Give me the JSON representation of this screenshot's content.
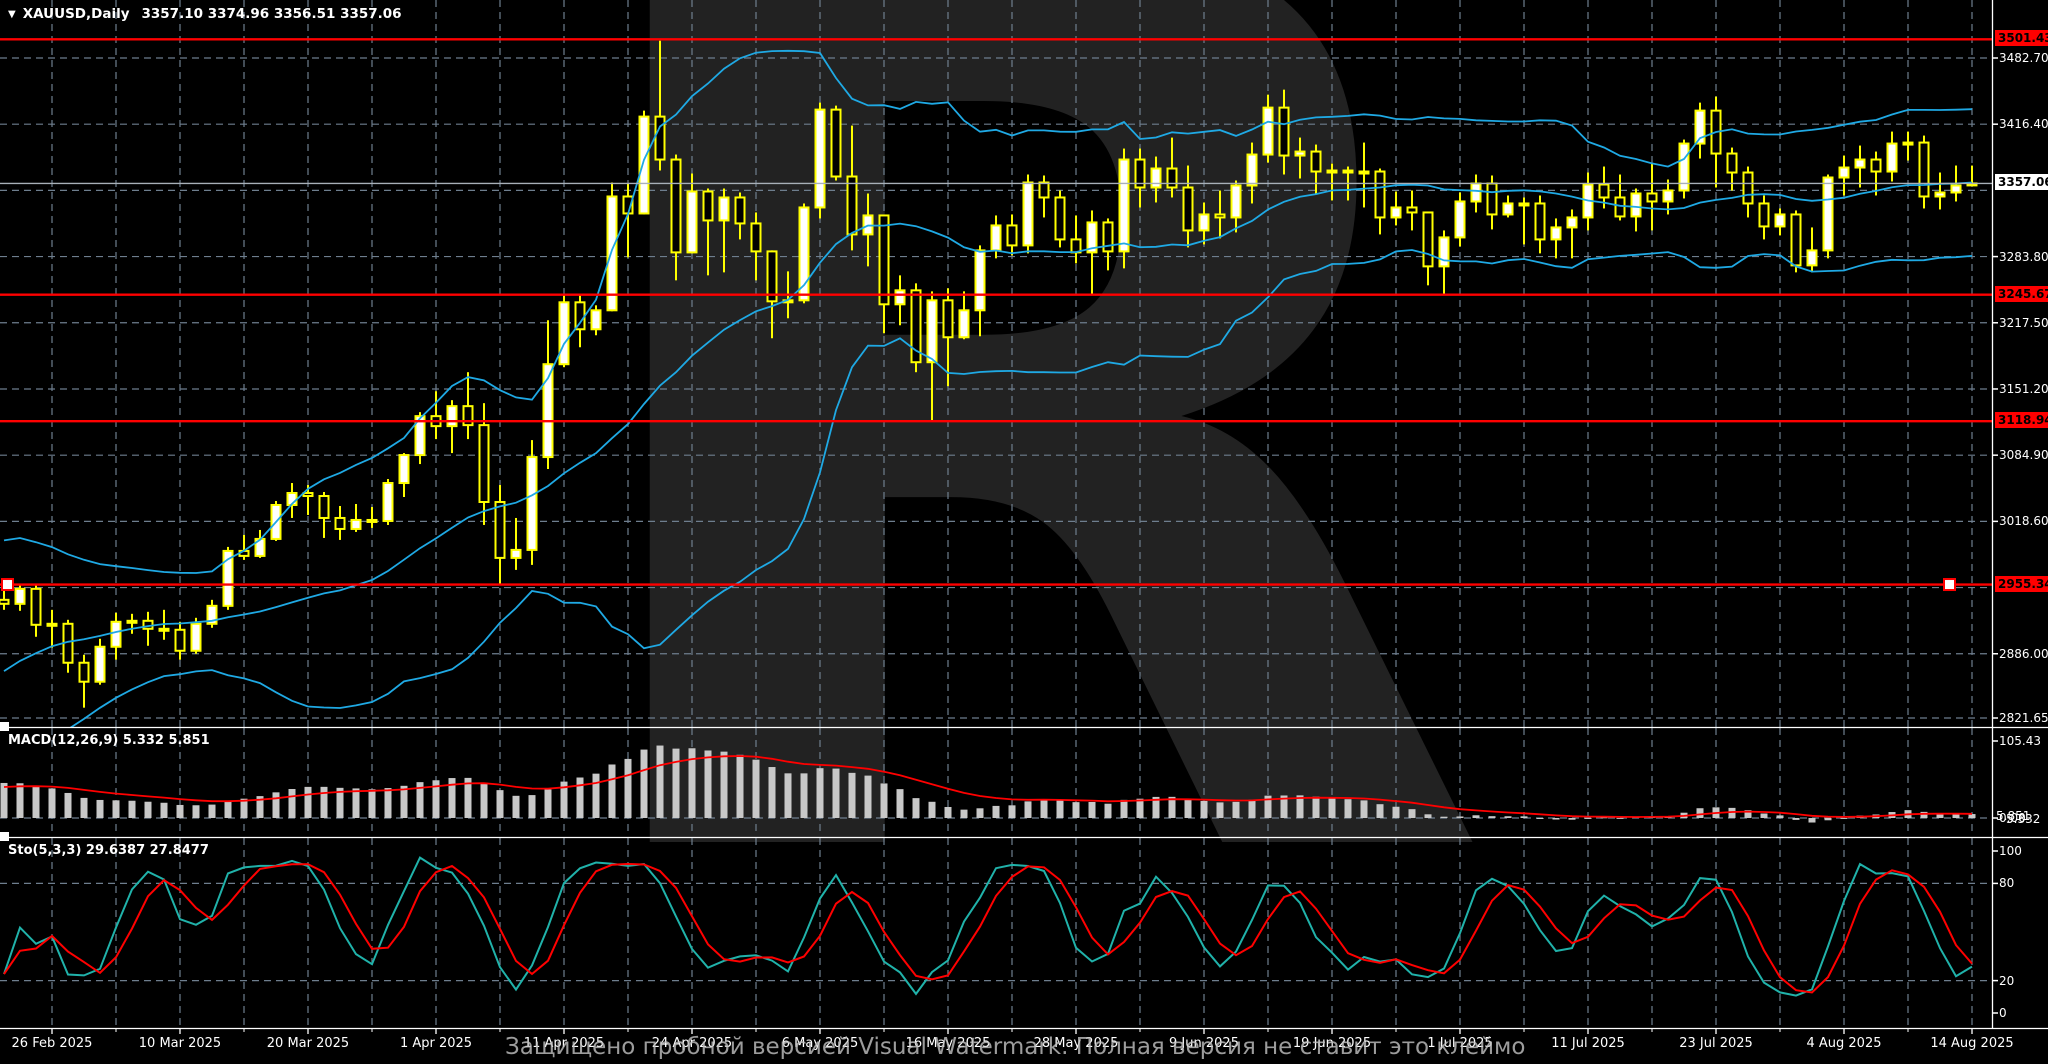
{
  "window": {
    "symbol_label": "XAUUSD,Daily",
    "ohlc_values": "3357.10 3374.96 3356.51 3357.06",
    "dropdown_icon": "▼"
  },
  "watermark": {
    "letter": "R",
    "text": "Защищено пробной версией Visual Watermark. Полная версия не ставит это клеймо"
  },
  "colors": {
    "background": "#000000",
    "candle_outline": "#FFFF00",
    "bull_fill": "#FFFFFF",
    "bear_fill": "#000000",
    "bollinger": "#1FA9E4",
    "grid": "#6E7E8E",
    "level_line": "#FF0000",
    "current_line": "#A8B0B8",
    "separator": "#FFFFFF",
    "macd_histogram": "#C8C8C8",
    "signal_line": "#FF0000",
    "sto_main": "#20B2AA",
    "sto_signal": "#FF0000",
    "axis_text": "#FFFFFF"
  },
  "x_axis": {
    "labels": [
      "26 Feb 2025",
      "10 Mar 2025",
      "20 Mar 2025",
      "1 Apr 2025",
      "11 Apr 2025",
      "24 Apr 2025",
      "6 May 2025",
      "16 May 2025",
      "28 May 2025",
      "9 Jun 2025",
      "19 Jun 2025",
      "1 Jul 2025",
      "11 Jul 2025",
      "23 Jul 2025",
      "4 Aug 2025",
      "14 Aug 2025"
    ],
    "first_label_candle_index": 3,
    "candles_per_label": 8
  },
  "chart_data": [
    {
      "type": "candlestick",
      "symbol": "XAUUSD",
      "timeframe": "Daily",
      "price_ticks": [
        {
          "label": "3482.70",
          "price": 3482.7
        },
        {
          "label": "3416.40",
          "price": 3416.4
        },
        {
          "label": "3283.80",
          "price": 3283.8
        },
        {
          "label": "3217.50",
          "price": 3217.5
        },
        {
          "label": "3151.20",
          "price": 3151.2
        },
        {
          "label": "3084.90",
          "price": 3084.9
        },
        {
          "label": "3018.60",
          "price": 3018.6
        },
        {
          "label": "2886.00",
          "price": 2886.0
        },
        {
          "label": "2821.65",
          "price": 2821.65
        }
      ],
      "grid_prices": [
        3482.7,
        3416.4,
        3350.1,
        3283.8,
        3217.5,
        3151.2,
        3084.9,
        3018.6,
        2952.3,
        2886.0,
        2821.65
      ],
      "levels": [
        {
          "label": "3501.43",
          "price": 3501.43,
          "selected": false
        },
        {
          "label": "3245.67",
          "price": 3245.67,
          "selected": false
        },
        {
          "label": "3118.94",
          "price": 3118.94,
          "selected": false
        },
        {
          "label": "2955.34",
          "price": 2955.34,
          "selected": true
        }
      ],
      "current_price": {
        "label": "3357.06",
        "price": 3357.06
      },
      "bollinger": {
        "period": 20,
        "deviation": 2
      },
      "warmup_closes": [
        2748,
        2760,
        2775,
        2790,
        2808,
        2825,
        2840,
        2852,
        2860,
        2868,
        2878,
        2890,
        2905,
        2918,
        2930,
        2940,
        2948,
        2952,
        2950
      ],
      "candles": [
        [
          2940,
          2955,
          2930,
          2936
        ],
        [
          2936,
          2956,
          2929,
          2951
        ],
        [
          2951,
          2955,
          2903,
          2915
        ],
        [
          2915,
          2930,
          2892,
          2916
        ],
        [
          2916,
          2920,
          2867,
          2877
        ],
        [
          2877,
          2885,
          2832,
          2858
        ],
        [
          2858,
          2901,
          2855,
          2893
        ],
        [
          2893,
          2927,
          2880,
          2918
        ],
        [
          2918,
          2926,
          2906,
          2919
        ],
        [
          2919,
          2928,
          2894,
          2911
        ],
        [
          2911,
          2930,
          2900,
          2910
        ],
        [
          2910,
          2918,
          2880,
          2889
        ],
        [
          2889,
          2922,
          2886,
          2916
        ],
        [
          2916,
          2940,
          2912,
          2934
        ],
        [
          2934,
          2993,
          2930,
          2989
        ],
        [
          2989,
          3005,
          2980,
          2984
        ],
        [
          2984,
          3010,
          2982,
          3001
        ],
        [
          3001,
          3039,
          2999,
          3035
        ],
        [
          3035,
          3057,
          3022,
          3047
        ],
        [
          3047,
          3055,
          3025,
          3044
        ],
        [
          3044,
          3048,
          3002,
          3022
        ],
        [
          3022,
          3034,
          3000,
          3011
        ],
        [
          3011,
          3036,
          3008,
          3020
        ],
        [
          3020,
          3033,
          3012,
          3019
        ],
        [
          3019,
          3061,
          3015,
          3057
        ],
        [
          3057,
          3087,
          3043,
          3085
        ],
        [
          3085,
          3128,
          3076,
          3124
        ],
        [
          3124,
          3149,
          3101,
          3114
        ],
        [
          3114,
          3140,
          3087,
          3134
        ],
        [
          3134,
          3168,
          3101,
          3115
        ],
        [
          3115,
          3137,
          3015,
          3038
        ],
        [
          3038,
          3055,
          2956,
          2982
        ],
        [
          2982,
          3022,
          2970,
          2990
        ],
        [
          2990,
          3100,
          2975,
          3083
        ],
        [
          3083,
          3220,
          3071,
          3176
        ],
        [
          3176,
          3246,
          3173,
          3238
        ],
        [
          3238,
          3246,
          3193,
          3211
        ],
        [
          3211,
          3235,
          3205,
          3230
        ],
        [
          3230,
          3358,
          3229,
          3344
        ],
        [
          3344,
          3357,
          3283,
          3327
        ],
        [
          3327,
          3430,
          3326,
          3424
        ],
        [
          3424,
          3500,
          3370,
          3381
        ],
        [
          3381,
          3386,
          3260,
          3288
        ],
        [
          3288,
          3367,
          3287,
          3349
        ],
        [
          3349,
          3352,
          3265,
          3320
        ],
        [
          3320,
          3352,
          3268,
          3343
        ],
        [
          3343,
          3348,
          3301,
          3317
        ],
        [
          3317,
          3328,
          3260,
          3289
        ],
        [
          3289,
          3290,
          3202,
          3239
        ],
        [
          3239,
          3269,
          3222,
          3240
        ],
        [
          3240,
          3337,
          3237,
          3333
        ],
        [
          3333,
          3438,
          3322,
          3431
        ],
        [
          3431,
          3435,
          3360,
          3364
        ],
        [
          3364,
          3415,
          3290,
          3306
        ],
        [
          3306,
          3347,
          3274,
          3325
        ],
        [
          3325,
          3325,
          3207,
          3236
        ],
        [
          3236,
          3265,
          3215,
          3250
        ],
        [
          3250,
          3257,
          3168,
          3178
        ],
        [
          3178,
          3249,
          3120,
          3240
        ],
        [
          3240,
          3252,
          3154,
          3203
        ],
        [
          3203,
          3249,
          3201,
          3230
        ],
        [
          3230,
          3295,
          3204,
          3290
        ],
        [
          3290,
          3325,
          3282,
          3315
        ],
        [
          3315,
          3326,
          3285,
          3295
        ],
        [
          3295,
          3366,
          3287,
          3358
        ],
        [
          3358,
          3365,
          3323,
          3343
        ],
        [
          3343,
          3350,
          3293,
          3301
        ],
        [
          3301,
          3325,
          3277,
          3288
        ],
        [
          3288,
          3330,
          3245,
          3318
        ],
        [
          3318,
          3322,
          3270,
          3289
        ],
        [
          3289,
          3392,
          3272,
          3381
        ],
        [
          3381,
          3392,
          3333,
          3353
        ],
        [
          3353,
          3384,
          3338,
          3372
        ],
        [
          3372,
          3403,
          3343,
          3353
        ],
        [
          3353,
          3375,
          3293,
          3310
        ],
        [
          3310,
          3338,
          3296,
          3326
        ],
        [
          3326,
          3350,
          3302,
          3323
        ],
        [
          3323,
          3360,
          3308,
          3355
        ],
        [
          3355,
          3398,
          3337,
          3386
        ],
        [
          3386,
          3446,
          3378,
          3433
        ],
        [
          3433,
          3451,
          3366,
          3385
        ],
        [
          3385,
          3403,
          3362,
          3389
        ],
        [
          3389,
          3396,
          3347,
          3369
        ],
        [
          3369,
          3377,
          3340,
          3370
        ],
        [
          3370,
          3374,
          3340,
          3368
        ],
        [
          3368,
          3398,
          3333,
          3369
        ],
        [
          3369,
          3372,
          3306,
          3323
        ],
        [
          3323,
          3349,
          3315,
          3333
        ],
        [
          3333,
          3350,
          3310,
          3328
        ],
        [
          3328,
          3328,
          3255,
          3274
        ],
        [
          3274,
          3310,
          3246,
          3303
        ],
        [
          3303,
          3348,
          3294,
          3339
        ],
        [
          3339,
          3366,
          3328,
          3357
        ],
        [
          3357,
          3365,
          3311,
          3326
        ],
        [
          3326,
          3345,
          3323,
          3337
        ],
        [
          3337,
          3343,
          3296,
          3337
        ],
        [
          3337,
          3345,
          3287,
          3301
        ],
        [
          3301,
          3322,
          3282,
          3313
        ],
        [
          3313,
          3331,
          3282,
          3323
        ],
        [
          3323,
          3368,
          3310,
          3356
        ],
        [
          3356,
          3374,
          3332,
          3343
        ],
        [
          3343,
          3366,
          3320,
          3324
        ],
        [
          3324,
          3352,
          3309,
          3347
        ],
        [
          3347,
          3377,
          3310,
          3339
        ],
        [
          3339,
          3361,
          3326,
          3350
        ],
        [
          3350,
          3401,
          3342,
          3397
        ],
        [
          3397,
          3438,
          3382,
          3430
        ],
        [
          3430,
          3444,
          3353,
          3387
        ],
        [
          3387,
          3393,
          3350,
          3368
        ],
        [
          3368,
          3374,
          3323,
          3337
        ],
        [
          3337,
          3345,
          3301,
          3314
        ],
        [
          3314,
          3332,
          3305,
          3326
        ],
        [
          3326,
          3330,
          3268,
          3275
        ],
        [
          3275,
          3313,
          3268,
          3290
        ],
        [
          3290,
          3366,
          3282,
          3363
        ],
        [
          3363,
          3385,
          3345,
          3373
        ],
        [
          3373,
          3395,
          3353,
          3381
        ],
        [
          3381,
          3389,
          3345,
          3369
        ],
        [
          3369,
          3409,
          3359,
          3397
        ],
        [
          3397,
          3409,
          3380,
          3398
        ],
        [
          3398,
          3405,
          3332,
          3344
        ],
        [
          3344,
          3368,
          3331,
          3348
        ],
        [
          3348,
          3375,
          3339,
          3355
        ],
        [
          3357.1,
          3374.96,
          3356.51,
          3357.06
        ]
      ]
    },
    {
      "type": "macd",
      "title": "MACD(12,26,9) 5.332 5.851",
      "params": [
        12,
        26,
        9
      ],
      "axis_labels": [
        {
          "label": "105.43",
          "value": 105.43
        },
        {
          "label": "0.00",
          "value": 0
        }
      ],
      "current_labels": [
        "5.332",
        "5.851"
      ]
    },
    {
      "type": "stochastic",
      "title": "Sto(5,3,3) 29.6387 27.8477",
      "params": [
        5,
        3,
        3
      ],
      "axis_labels": [
        {
          "label": "100",
          "value": 100
        },
        {
          "label": "80",
          "value": 80
        },
        {
          "label": "20",
          "value": 20
        },
        {
          "label": "0",
          "value": 0
        }
      ],
      "level_lines": [
        80,
        20
      ]
    }
  ]
}
